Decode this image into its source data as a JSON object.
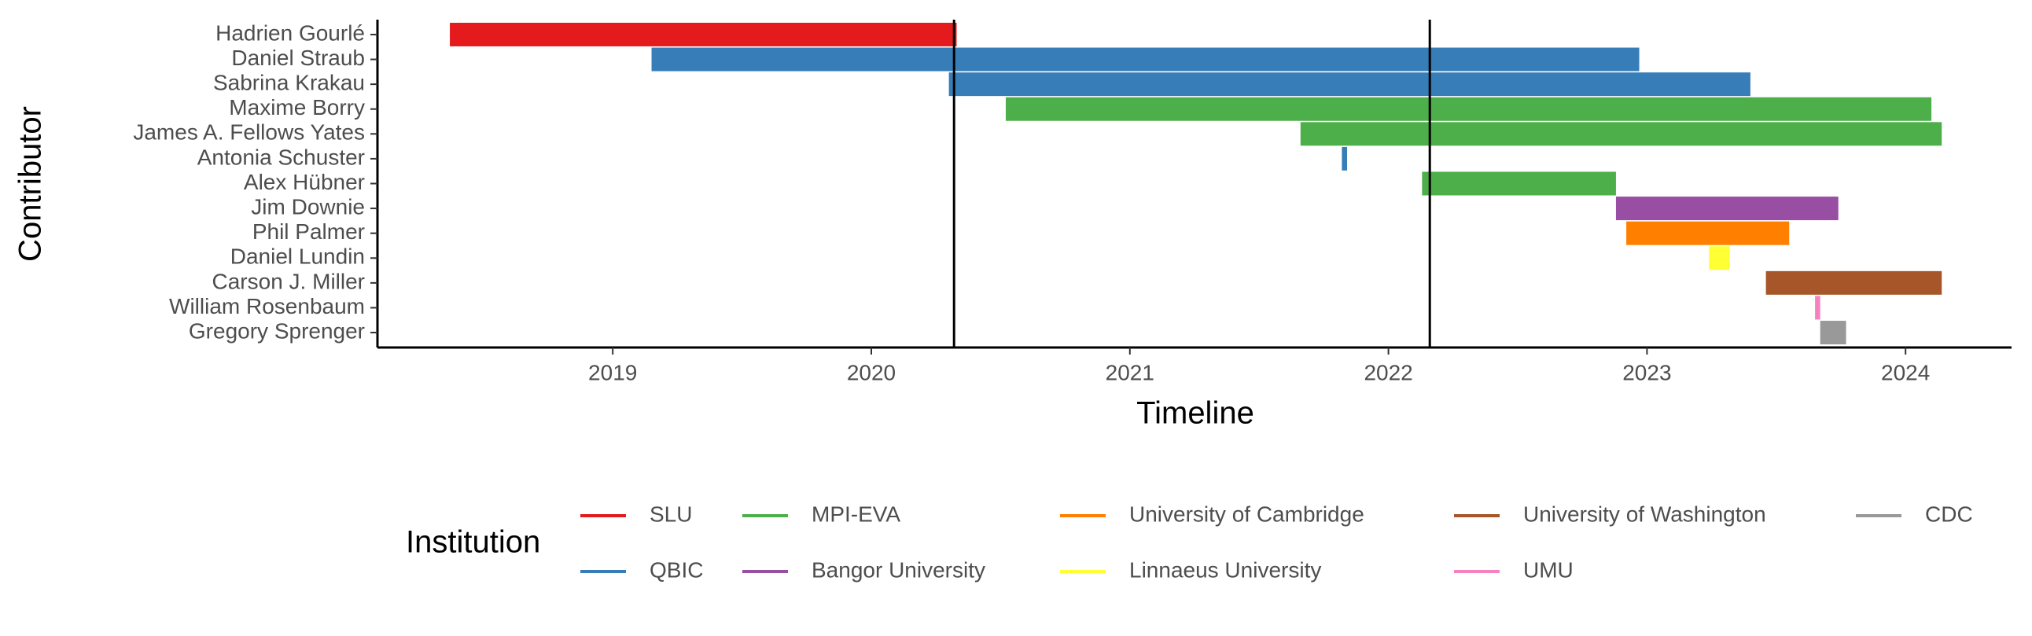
{
  "chart_data": {
    "type": "gantt",
    "x_label": "Timeline",
    "y_label": "Contributor",
    "legend_title": "Institution",
    "categories": [
      "Hadrien Gourlé",
      "Daniel Straub",
      "Sabrina Krakau",
      "Maxime Borry",
      "James A. Fellows Yates",
      "Antonia Schuster",
      "Alex Hübner",
      "Jim Downie",
      "Phil Palmer",
      "Daniel Lundin",
      "Carson J. Miller",
      "William Rosenbaum",
      "Gregory Sprenger"
    ],
    "series": [
      {
        "name": "SLU",
        "color": "#E41A1C",
        "values": [
          [
            2018.37,
            2020.33
          ],
          null,
          null,
          null,
          null,
          null,
          null,
          null,
          null,
          null,
          null,
          null,
          null
        ]
      },
      {
        "name": "QBIC",
        "color": "#377EB8",
        "values": [
          null,
          [
            2019.15,
            2022.97
          ],
          [
            2020.3,
            2023.4
          ],
          null,
          null,
          [
            2021.82,
            2021.84
          ],
          null,
          null,
          null,
          null,
          null,
          null,
          null
        ]
      },
      {
        "name": "MPI-EVA",
        "color": "#4DAF4A",
        "values": [
          null,
          null,
          null,
          [
            2020.52,
            2024.1
          ],
          [
            2021.66,
            2024.14
          ],
          null,
          [
            2022.13,
            2022.88
          ],
          null,
          null,
          null,
          null,
          null,
          null
        ]
      },
      {
        "name": "Bangor University",
        "color": "#984EA3",
        "values": [
          null,
          null,
          null,
          null,
          null,
          null,
          null,
          [
            2022.88,
            2023.74
          ],
          null,
          null,
          null,
          null,
          null
        ]
      },
      {
        "name": "University of Cambridge",
        "color": "#FF7F00",
        "values": [
          null,
          null,
          null,
          null,
          null,
          null,
          null,
          null,
          [
            2022.92,
            2023.55
          ],
          null,
          null,
          null,
          null
        ]
      },
      {
        "name": "Linnaeus University",
        "color": "#FFFF33",
        "values": [
          null,
          null,
          null,
          null,
          null,
          null,
          null,
          null,
          null,
          [
            2023.24,
            2023.32
          ],
          null,
          null,
          null
        ]
      },
      {
        "name": "University of Washington",
        "color": "#A65628",
        "values": [
          null,
          null,
          null,
          null,
          null,
          null,
          null,
          null,
          null,
          null,
          [
            2023.46,
            2024.14
          ],
          null,
          null
        ]
      },
      {
        "name": "UMU",
        "color": "#F781BF",
        "values": [
          null,
          null,
          null,
          null,
          null,
          null,
          null,
          null,
          null,
          null,
          null,
          [
            2023.65,
            2023.67
          ],
          null
        ]
      },
      {
        "name": "CDC",
        "color": "#999999",
        "values": [
          null,
          null,
          null,
          null,
          null,
          null,
          null,
          null,
          null,
          null,
          null,
          null,
          [
            2023.67,
            2023.77
          ]
        ]
      }
    ],
    "vlines": [
      2020.32,
      2022.16
    ],
    "xlim": [
      2018.09,
      2024.41
    ],
    "xticks": [
      2019,
      2020,
      2021,
      2022,
      2023,
      2024
    ],
    "legend_position": "bottom"
  }
}
